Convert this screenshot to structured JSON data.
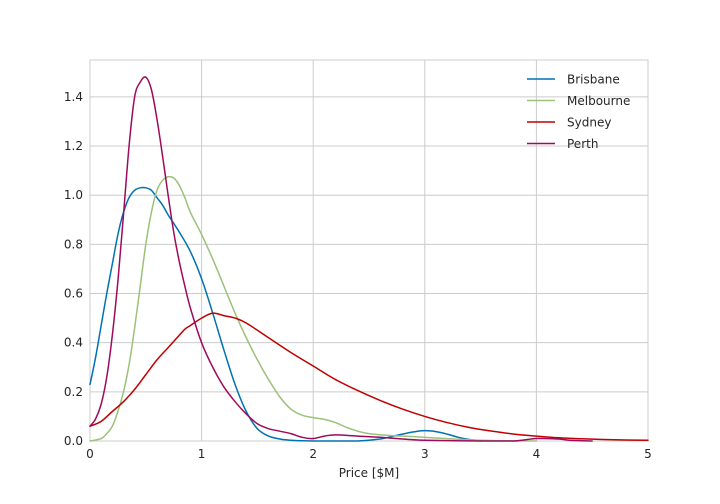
{
  "chart_data": {
    "type": "line",
    "title": "",
    "xlabel": "Price [$M]",
    "ylabel": "",
    "xlim": [
      0,
      5
    ],
    "ylim": [
      0,
      1.55
    ],
    "xticks": [
      "0",
      "1",
      "2",
      "3",
      "4",
      "5"
    ],
    "yticks": [
      "0.0",
      "0.2",
      "0.4",
      "0.6",
      "0.8",
      "1.0",
      "1.2",
      "1.4"
    ],
    "grid": true,
    "legend_position": "top-right",
    "series": [
      {
        "name": "Brisbane",
        "color": "#0072B2",
        "x": [
          0,
          0.05,
          0.1,
          0.15,
          0.2,
          0.25,
          0.3,
          0.35,
          0.4,
          0.45,
          0.5,
          0.55,
          0.6,
          0.65,
          0.7,
          0.8,
          0.9,
          1.0,
          1.1,
          1.2,
          1.3,
          1.4,
          1.5,
          1.6,
          1.7,
          1.8,
          1.9,
          2.0,
          2.2,
          2.4,
          2.6,
          2.7,
          2.8,
          2.9,
          3.0,
          3.1,
          3.2,
          3.3,
          3.4,
          3.5
        ],
        "y": [
          0.23,
          0.34,
          0.47,
          0.6,
          0.72,
          0.84,
          0.93,
          0.99,
          1.02,
          1.03,
          1.03,
          1.02,
          0.99,
          0.96,
          0.92,
          0.85,
          0.77,
          0.66,
          0.52,
          0.37,
          0.23,
          0.12,
          0.05,
          0.02,
          0.008,
          0.003,
          0.001,
          0.0,
          0.0,
          0.0,
          0.008,
          0.018,
          0.028,
          0.037,
          0.042,
          0.038,
          0.028,
          0.015,
          0.006,
          0.0
        ]
      },
      {
        "name": "Melbourne",
        "color": "#9BC17A",
        "x": [
          0,
          0.1,
          0.15,
          0.2,
          0.25,
          0.3,
          0.35,
          0.4,
          0.45,
          0.5,
          0.55,
          0.6,
          0.65,
          0.7,
          0.75,
          0.8,
          0.85,
          0.9,
          1.0,
          1.1,
          1.2,
          1.3,
          1.4,
          1.5,
          1.6,
          1.7,
          1.8,
          1.9,
          2.0,
          2.1,
          2.2,
          2.3,
          2.4,
          2.5,
          2.7,
          2.9,
          3.1,
          3.3,
          3.5,
          3.7,
          4.0
        ],
        "y": [
          0.0,
          0.01,
          0.03,
          0.06,
          0.12,
          0.2,
          0.31,
          0.46,
          0.63,
          0.8,
          0.93,
          1.02,
          1.06,
          1.075,
          1.07,
          1.04,
          0.99,
          0.93,
          0.84,
          0.74,
          0.63,
          0.52,
          0.42,
          0.33,
          0.25,
          0.18,
          0.13,
          0.105,
          0.095,
          0.088,
          0.075,
          0.055,
          0.04,
          0.03,
          0.022,
          0.018,
          0.012,
          0.007,
          0.003,
          0.001,
          0.0
        ]
      },
      {
        "name": "Sydney",
        "color": "#C00000",
        "x": [
          0,
          0.1,
          0.2,
          0.3,
          0.4,
          0.5,
          0.6,
          0.7,
          0.8,
          0.85,
          0.9,
          1.0,
          1.1,
          1.2,
          1.3,
          1.4,
          1.6,
          1.8,
          2.0,
          2.2,
          2.4,
          2.6,
          2.8,
          3.0,
          3.2,
          3.4,
          3.6,
          3.8,
          4.0,
          4.2,
          4.4,
          4.6,
          4.8,
          5.0
        ],
        "y": [
          0.06,
          0.08,
          0.12,
          0.16,
          0.21,
          0.27,
          0.33,
          0.38,
          0.43,
          0.455,
          0.47,
          0.5,
          0.52,
          0.51,
          0.5,
          0.48,
          0.42,
          0.36,
          0.305,
          0.25,
          0.205,
          0.165,
          0.13,
          0.1,
          0.075,
          0.055,
          0.04,
          0.028,
          0.02,
          0.013,
          0.009,
          0.006,
          0.004,
          0.003
        ]
      },
      {
        "name": "Perth",
        "color": "#9E0A5C",
        "x": [
          0,
          0.05,
          0.1,
          0.15,
          0.2,
          0.25,
          0.3,
          0.35,
          0.4,
          0.45,
          0.5,
          0.55,
          0.6,
          0.65,
          0.7,
          0.75,
          0.8,
          0.85,
          0.9,
          1.0,
          1.1,
          1.2,
          1.3,
          1.4,
          1.5,
          1.6,
          1.7,
          1.8,
          1.9,
          2.0,
          2.1,
          2.2,
          2.4,
          2.6,
          2.8,
          3.0,
          3.5,
          3.8,
          4.0,
          4.2,
          4.3,
          4.5
        ],
        "y": [
          0.06,
          0.09,
          0.15,
          0.26,
          0.43,
          0.65,
          0.92,
          1.2,
          1.4,
          1.46,
          1.48,
          1.43,
          1.31,
          1.16,
          1.0,
          0.85,
          0.73,
          0.63,
          0.54,
          0.4,
          0.3,
          0.22,
          0.16,
          0.11,
          0.07,
          0.05,
          0.04,
          0.03,
          0.015,
          0.01,
          0.02,
          0.025,
          0.02,
          0.015,
          0.008,
          0.003,
          0.0,
          0.0,
          0.01,
          0.008,
          0.003,
          0.0
        ]
      }
    ]
  }
}
